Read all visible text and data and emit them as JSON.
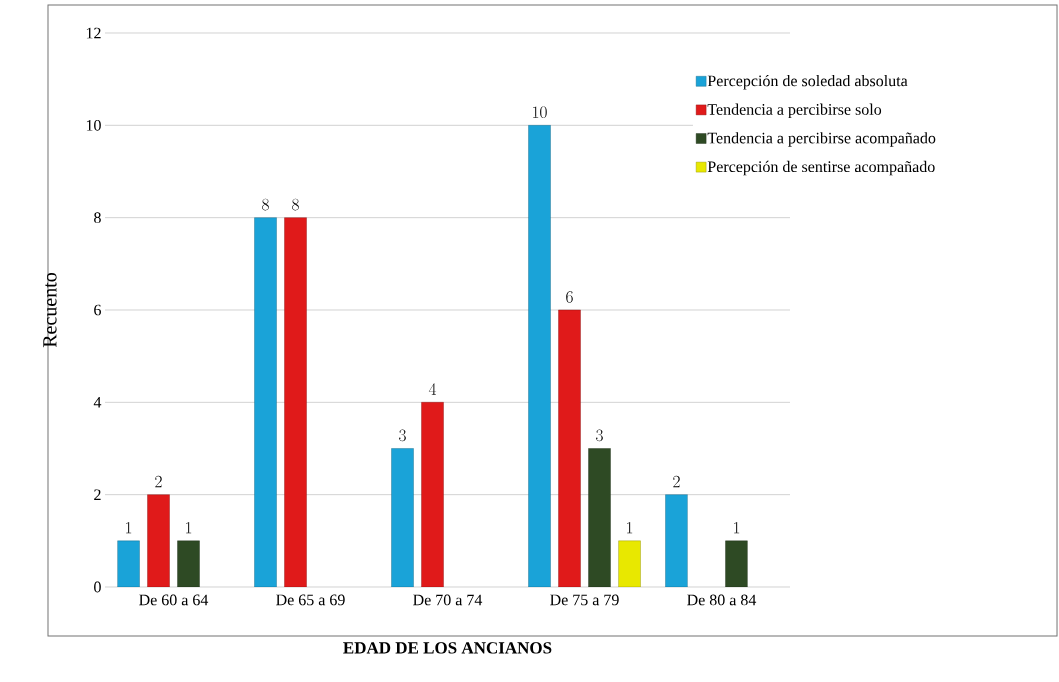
{
  "chart_data": {
    "type": "bar",
    "xlabel": "EDAD DE LOS ANCIANOS",
    "ylabel": "Recuento",
    "categories": [
      "De 60 a 64",
      "De 65 a 69",
      "De 70 a 74",
      "De 75 a 79",
      "De 80 a 84"
    ],
    "series": [
      {
        "name": "Percepción de soledad absoluta",
        "color": "#1aa3d8",
        "values": [
          1,
          8,
          3,
          10,
          2
        ]
      },
      {
        "name": "Tendencia a percibirse solo",
        "color": "#e01a1a",
        "values": [
          2,
          8,
          4,
          6,
          null
        ]
      },
      {
        "name": "Tendencia a percibirse acompañado",
        "color": "#2e4a24",
        "values": [
          1,
          null,
          null,
          3,
          1
        ]
      },
      {
        "name": "Percepción de sentirse acompañado",
        "color": "#e8e800",
        "values": [
          null,
          null,
          null,
          1,
          null
        ]
      }
    ],
    "ylim": [
      0,
      12
    ],
    "yticks": [
      0,
      2,
      4,
      6,
      8,
      10,
      12
    ],
    "grid": "y",
    "legend": "top right",
    "data_labels": true
  }
}
